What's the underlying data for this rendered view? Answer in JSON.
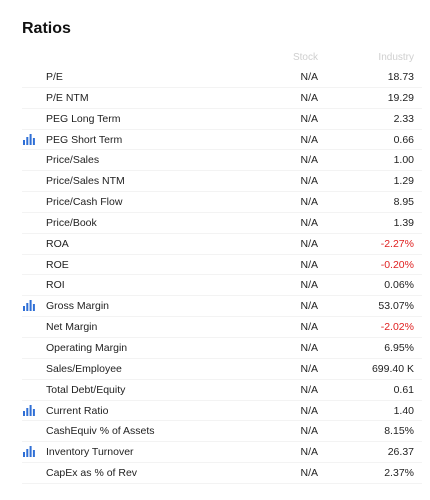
{
  "title": "Ratios",
  "columns": {
    "stock": "Stock",
    "industry": "Industry"
  },
  "colors": {
    "negative": "#e02020",
    "icon": "#2f6fd6"
  },
  "rows": [
    {
      "label": "P/E",
      "stock": "N/A",
      "industry": "18.73",
      "negative": false,
      "chart_icon": false
    },
    {
      "label": "P/E NTM",
      "stock": "N/A",
      "industry": "19.29",
      "negative": false,
      "chart_icon": false
    },
    {
      "label": "PEG Long Term",
      "stock": "N/A",
      "industry": "2.33",
      "negative": false,
      "chart_icon": false
    },
    {
      "label": "PEG Short Term",
      "stock": "N/A",
      "industry": "0.66",
      "negative": false,
      "chart_icon": true
    },
    {
      "label": "Price/Sales",
      "stock": "N/A",
      "industry": "1.00",
      "negative": false,
      "chart_icon": false
    },
    {
      "label": "Price/Sales NTM",
      "stock": "N/A",
      "industry": "1.29",
      "negative": false,
      "chart_icon": false
    },
    {
      "label": "Price/Cash Flow",
      "stock": "N/A",
      "industry": "8.95",
      "negative": false,
      "chart_icon": false
    },
    {
      "label": "Price/Book",
      "stock": "N/A",
      "industry": "1.39",
      "negative": false,
      "chart_icon": false
    },
    {
      "label": "ROA",
      "stock": "N/A",
      "industry": "-2.27%",
      "negative": true,
      "chart_icon": false
    },
    {
      "label": "ROE",
      "stock": "N/A",
      "industry": "-0.20%",
      "negative": true,
      "chart_icon": false
    },
    {
      "label": "ROI",
      "stock": "N/A",
      "industry": "0.06%",
      "negative": false,
      "chart_icon": false
    },
    {
      "label": "Gross Margin",
      "stock": "N/A",
      "industry": "53.07%",
      "negative": false,
      "chart_icon": true
    },
    {
      "label": "Net Margin",
      "stock": "N/A",
      "industry": "-2.02%",
      "negative": true,
      "chart_icon": false
    },
    {
      "label": "Operating Margin",
      "stock": "N/A",
      "industry": "6.95%",
      "negative": false,
      "chart_icon": false
    },
    {
      "label": "Sales/Employee",
      "stock": "N/A",
      "industry": "699.40 K",
      "negative": false,
      "chart_icon": false
    },
    {
      "label": "Total Debt/Equity",
      "stock": "N/A",
      "industry": "0.61",
      "negative": false,
      "chart_icon": false
    },
    {
      "label": "Current Ratio",
      "stock": "N/A",
      "industry": "1.40",
      "negative": false,
      "chart_icon": true
    },
    {
      "label": "CashEquiv % of Assets",
      "stock": "N/A",
      "industry": "8.15%",
      "negative": false,
      "chart_icon": false
    },
    {
      "label": "Inventory Turnover",
      "stock": "N/A",
      "industry": "26.37",
      "negative": false,
      "chart_icon": true
    },
    {
      "label": "CapEx as % of Rev",
      "stock": "N/A",
      "industry": "2.37%",
      "negative": false,
      "chart_icon": false
    }
  ]
}
